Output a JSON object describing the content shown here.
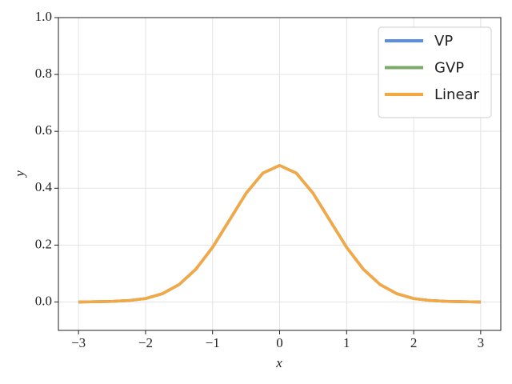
{
  "chart_data": {
    "type": "line",
    "x_label": "x",
    "y_label": "y",
    "x": [
      -3,
      -2.75,
      -2.5,
      -2.25,
      -2,
      -1.75,
      -1.5,
      -1.25,
      -1,
      -0.75,
      -0.5,
      -0.25,
      0,
      0.25,
      0.5,
      0.75,
      1,
      1.25,
      1.5,
      1.75,
      2,
      2.25,
      2.5,
      2.75,
      3
    ],
    "series": [
      {
        "name": "VP",
        "color": "#5b8ee0",
        "values": [
          0.0,
          0.001,
          0.002,
          0.005,
          0.012,
          0.029,
          0.061,
          0.115,
          0.192,
          0.287,
          0.382,
          0.453,
          0.48,
          0.453,
          0.382,
          0.287,
          0.192,
          0.115,
          0.061,
          0.029,
          0.012,
          0.005,
          0.002,
          0.001,
          0.0
        ]
      },
      {
        "name": "GVP",
        "color": "#7caa6b",
        "values": [
          0.0,
          0.001,
          0.002,
          0.005,
          0.012,
          0.029,
          0.061,
          0.115,
          0.192,
          0.287,
          0.382,
          0.453,
          0.48,
          0.453,
          0.382,
          0.287,
          0.192,
          0.115,
          0.061,
          0.029,
          0.012,
          0.005,
          0.002,
          0.001,
          0.0
        ]
      },
      {
        "name": "Linear",
        "color": "#f5a742",
        "values": [
          0.0,
          0.001,
          0.002,
          0.005,
          0.012,
          0.029,
          0.061,
          0.115,
          0.192,
          0.287,
          0.382,
          0.453,
          0.48,
          0.453,
          0.382,
          0.287,
          0.192,
          0.115,
          0.061,
          0.029,
          0.012,
          0.005,
          0.002,
          0.001,
          0.0
        ]
      }
    ],
    "xlim": [
      -3.3,
      3.3
    ],
    "ylim": [
      -0.1,
      1.0
    ],
    "xticks": [
      {
        "value": -3,
        "label": "−3"
      },
      {
        "value": -2,
        "label": "−2"
      },
      {
        "value": -1,
        "label": "−1"
      },
      0,
      1,
      2,
      3
    ],
    "yticks": [
      {
        "value": 0,
        "label": "0.0"
      },
      0.2,
      0.4,
      0.6,
      0.8,
      {
        "value": 1,
        "label": "1.0"
      }
    ],
    "grid": true,
    "legend": "upper right"
  }
}
